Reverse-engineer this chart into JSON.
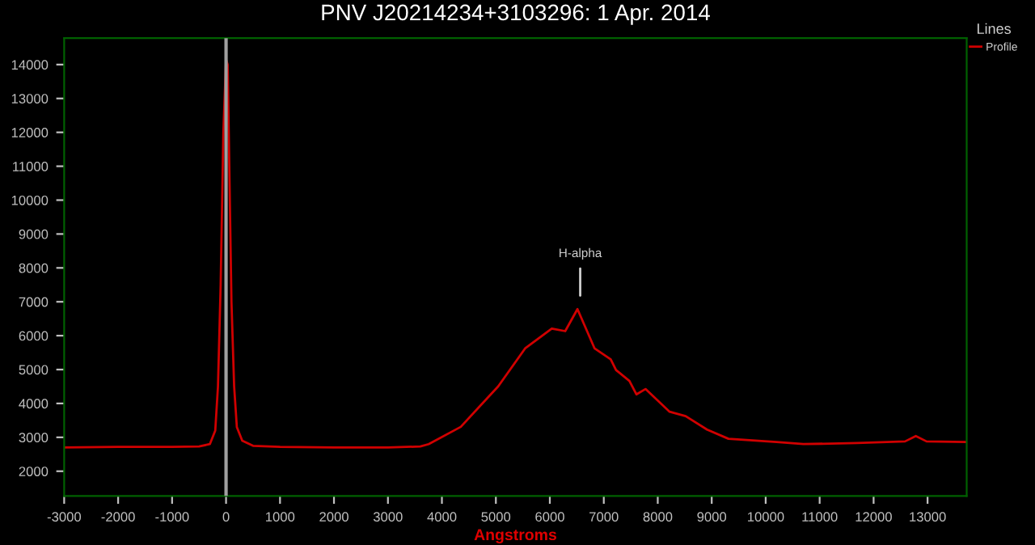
{
  "chart_data": {
    "type": "line",
    "title": "PNV J20214234+3103296: 1 Apr. 2014",
    "xlabel": "Angstroms",
    "legend_title": "Lines",
    "legend": "top right",
    "x": [
      -3000,
      -2000,
      -1000,
      -500,
      -300,
      -200,
      -150,
      -100,
      -50,
      0,
      30,
      60,
      100,
      150,
      200,
      300,
      500,
      1000,
      2000,
      3000,
      3600,
      3755,
      4350,
      5044,
      5541,
      6036,
      6285,
      6512,
      6830,
      7128,
      7227,
      7475,
      7604,
      7773,
      8219,
      8517,
      8913,
      9310,
      10202,
      10699,
      11690,
      12583,
      12782,
      12981,
      13725
    ],
    "series": [
      {
        "name": "Profile",
        "color": "#d00000",
        "values": [
          2700,
          2720,
          2720,
          2730,
          2800,
          3200,
          4500,
          7500,
          12000,
          14150,
          14000,
          11000,
          7000,
          4500,
          3300,
          2900,
          2750,
          2720,
          2700,
          2700,
          2730,
          2800,
          3310,
          4507,
          5622,
          6211,
          6134,
          6785,
          5622,
          5301,
          4986,
          4665,
          4268,
          4426,
          3756,
          3627,
          3230,
          2957,
          2861,
          2800,
          2830,
          2880,
          3038,
          2880,
          2860
        ]
      }
    ],
    "annotations": [
      {
        "text": "H-alpha",
        "x": 6563,
        "y": 6785
      }
    ],
    "ref_lines": [
      {
        "axis": "x",
        "value": 0,
        "color": "#a0a0a0"
      }
    ],
    "xlim": [
      -3000,
      13725
    ],
    "ylim": [
      1270,
      14780
    ],
    "xticks": [
      -3000,
      -2000,
      -1000,
      0,
      1000,
      2000,
      3000,
      4000,
      5000,
      6000,
      7000,
      8000,
      9000,
      10000,
      11000,
      12000,
      13000
    ],
    "yticks": [
      2000,
      3000,
      4000,
      5000,
      6000,
      7000,
      8000,
      9000,
      10000,
      11000,
      12000,
      13000,
      14000
    ],
    "grid": false,
    "marker": "none",
    "line_style": "solid"
  }
}
